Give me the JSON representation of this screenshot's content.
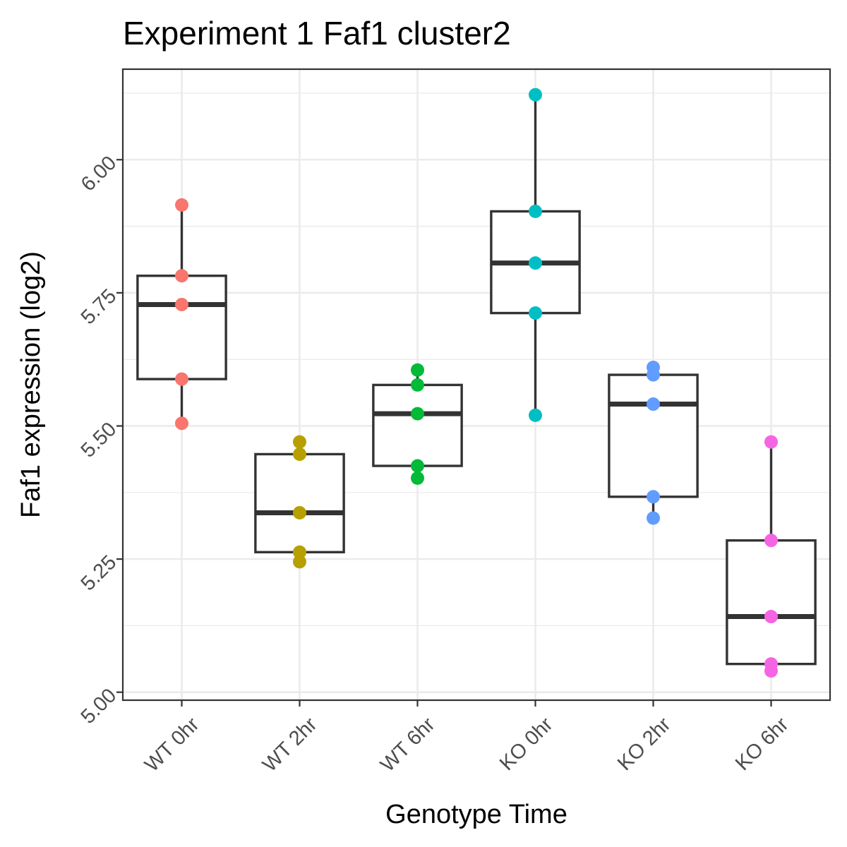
{
  "chart_data": {
    "type": "box",
    "title": "Experiment 1 Faf1 cluster2",
    "xlabel": "Genotype Time",
    "ylabel": "Faf1 expression (log2)",
    "ylim": [
      4.985,
      6.17
    ],
    "yticks": [
      5.0,
      5.25,
      5.5,
      5.75,
      6.0
    ],
    "ytick_labels": [
      "5.00",
      "5.25",
      "5.50",
      "5.75",
      "6.00"
    ],
    "grid": true,
    "legend": "none",
    "categories": [
      "WT 0hr",
      "WT 2hr",
      "WT 6hr",
      "KO 0hr",
      "KO 2hr",
      "KO 6hr"
    ],
    "colors": [
      "#F8766D",
      "#B79F00",
      "#00BA38",
      "#00BFC4",
      "#619CFF",
      "#F564E3"
    ],
    "boxes": [
      {
        "whisker_low": 5.505,
        "q1": 5.588,
        "median": 5.728,
        "q3": 5.782,
        "whisker_high": 5.915
      },
      {
        "whisker_low": 5.245,
        "q1": 5.263,
        "median": 5.337,
        "q3": 5.447,
        "whisker_high": 5.47
      },
      {
        "whisker_low": 5.402,
        "q1": 5.425,
        "median": 5.523,
        "q3": 5.577,
        "whisker_high": 5.605
      },
      {
        "whisker_low": 5.52,
        "q1": 5.712,
        "median": 5.806,
        "q3": 5.903,
        "whisker_high": 6.122
      },
      {
        "whisker_low": 5.327,
        "q1": 5.367,
        "median": 5.541,
        "q3": 5.596,
        "whisker_high": 5.61
      },
      {
        "whisker_low": 5.04,
        "q1": 5.053,
        "median": 5.142,
        "q3": 5.285,
        "whisker_high": 5.47
      }
    ],
    "points": [
      [
        5.915,
        5.782,
        5.728,
        5.588,
        5.505
      ],
      [
        5.47,
        5.447,
        5.337,
        5.263,
        5.245
      ],
      [
        5.605,
        5.577,
        5.523,
        5.425,
        5.402
      ],
      [
        6.122,
        5.903,
        5.806,
        5.712,
        5.52
      ],
      [
        5.61,
        5.596,
        5.541,
        5.367,
        5.327
      ],
      [
        5.47,
        5.285,
        5.142,
        5.053,
        5.04
      ]
    ]
  }
}
